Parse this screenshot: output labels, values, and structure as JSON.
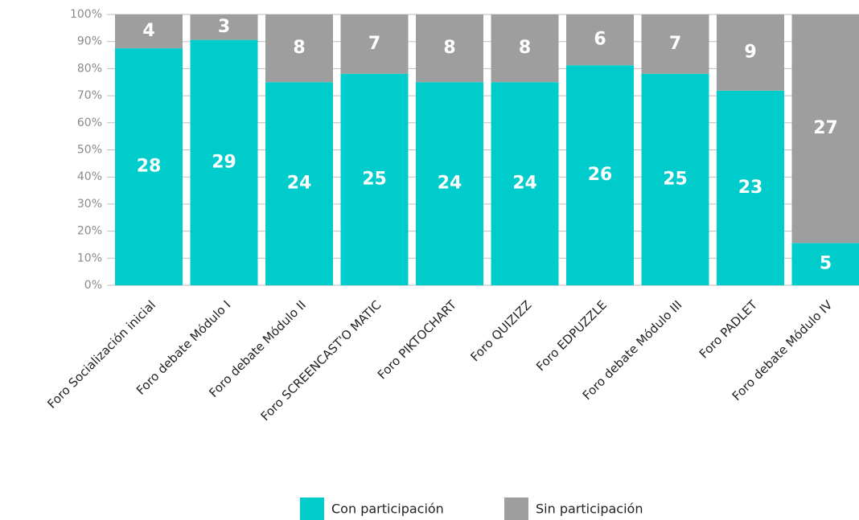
{
  "chart_data": {
    "type": "bar",
    "stacking": "percent",
    "categories": [
      "Foro Socialización inicial",
      "Foro debate Módulo I",
      "Foro debate Módulo II",
      "Foro SCREENCAST'O MATIC",
      "Foro PIKTOCHART",
      "Foro QUIZIZZ",
      "Foro EDPUZZLE",
      "Foro debate Módulo III",
      "Foro PADLET",
      "Foro debate Módulo IV"
    ],
    "series": [
      {
        "name": "Con participación",
        "color": "#00cccc",
        "values": [
          28,
          29,
          24,
          25,
          24,
          24,
          26,
          25,
          23,
          5
        ]
      },
      {
        "name": "Sin participación",
        "color": "#9e9e9e",
        "values": [
          4,
          3,
          8,
          7,
          8,
          8,
          6,
          7,
          9,
          27
        ]
      }
    ],
    "ylim": [
      0,
      100
    ],
    "yticks": [
      {
        "value": 0,
        "label": "0%"
      },
      {
        "value": 10,
        "label": "10%"
      },
      {
        "value": 20,
        "label": "20%"
      },
      {
        "value": 30,
        "label": "30%"
      },
      {
        "value": 40,
        "label": "40%"
      },
      {
        "value": 50,
        "label": "50%"
      },
      {
        "value": 60,
        "label": "60%"
      },
      {
        "value": 70,
        "label": "70%"
      },
      {
        "value": 80,
        "label": "80%"
      },
      {
        "value": 90,
        "label": "90%"
      },
      {
        "value": 100,
        "label": "100%"
      }
    ],
    "grid": true,
    "legend": "bottom"
  }
}
